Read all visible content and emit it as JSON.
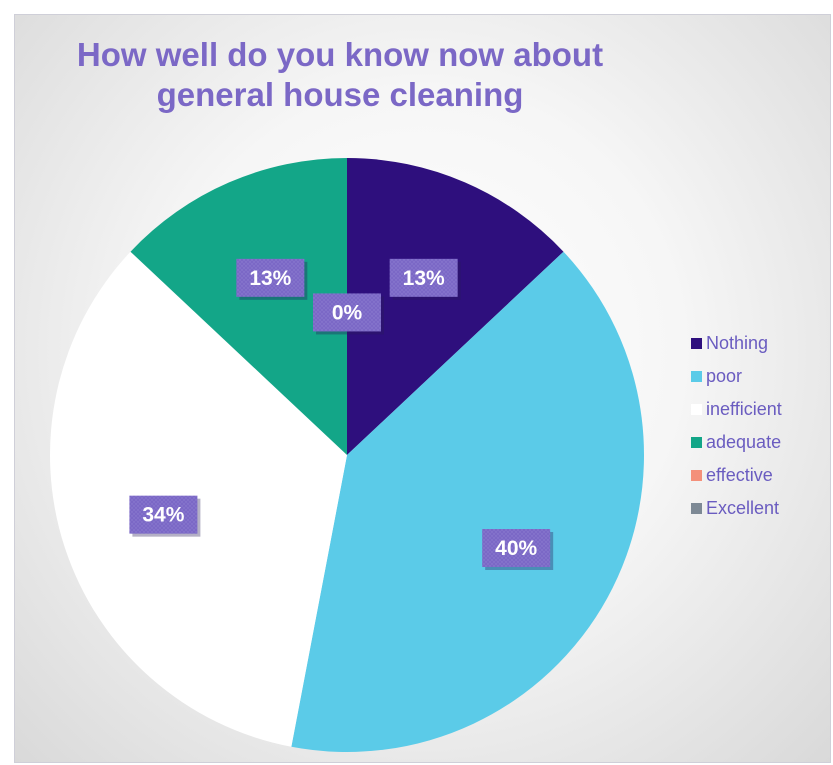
{
  "chart_data": {
    "type": "pie",
    "title_lines": [
      "How well do you know now about",
      "general house cleaning"
    ],
    "categories": [
      "Nothing",
      "poor",
      "inefficient",
      "adequate",
      "effective",
      "Excellent"
    ],
    "values": [
      13,
      40,
      34,
      13,
      0,
      0
    ],
    "value_labels": [
      "13%",
      "40%",
      "34%",
      "13%",
      "0%",
      ""
    ],
    "colors": [
      "#2e0f7d",
      "#5bcbe8",
      "#ffffff",
      "#13a688",
      "#f4907a",
      "#7d8995"
    ],
    "legend_position": "right",
    "start_angle_deg": 0,
    "direction": "clockwise"
  },
  "theme": {
    "title_color": "#7b68c6",
    "label_box_color": "#7b68c6",
    "legend_text_color": "#6a5cc0"
  }
}
